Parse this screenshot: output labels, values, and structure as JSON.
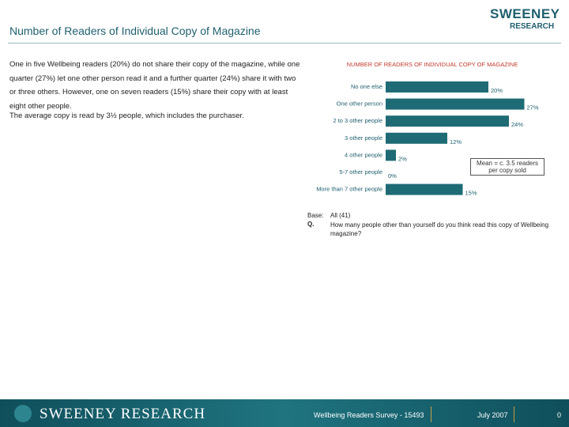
{
  "header": {
    "title": "Number of Readers of Individual Copy of Magazine",
    "logo_top": "SWEENEY",
    "logo_bottom": "RESEARCH"
  },
  "body": {
    "paragraph1": "One in five Wellbeing readers (20%) do not share their copy of the magazine, while one quarter (27%) let one other person read it and a further quarter (24%) share it with two or three others. However, one on seven readers (15%) share their copy with at least eight other people.",
    "paragraph2": "The average copy is read by 3½ people, which includes the purchaser."
  },
  "chart_data": {
    "type": "bar",
    "orientation": "horizontal",
    "title": "NUMBER OF READERS OF INDIVIDUAL COPY OF MAGAZINE",
    "categories": [
      "No one else",
      "One other person",
      "2 to 3 other people",
      "3 other people",
      "4 other people",
      "5-7 other people",
      "More than 7 other people"
    ],
    "values": [
      20,
      27,
      24,
      12,
      2,
      0,
      15
    ],
    "value_labels": [
      "20%",
      "27%",
      "24%",
      "12%",
      "2%",
      "0%",
      "15%"
    ],
    "color": "#1f6b75",
    "annotation": "Mean = c. 3.5 readers per copy sold"
  },
  "notes": {
    "base_label": "Base:",
    "base_text": "All (41)",
    "q_label": "Q.",
    "q_text": "How many people other than yourself do you think read this copy of Wellbeing magazine?"
  },
  "footer": {
    "brand": "SWEENEY RESEARCH",
    "survey": "Wellbeing Readers Survey - 15493",
    "date": "July 2007",
    "page": "0"
  }
}
